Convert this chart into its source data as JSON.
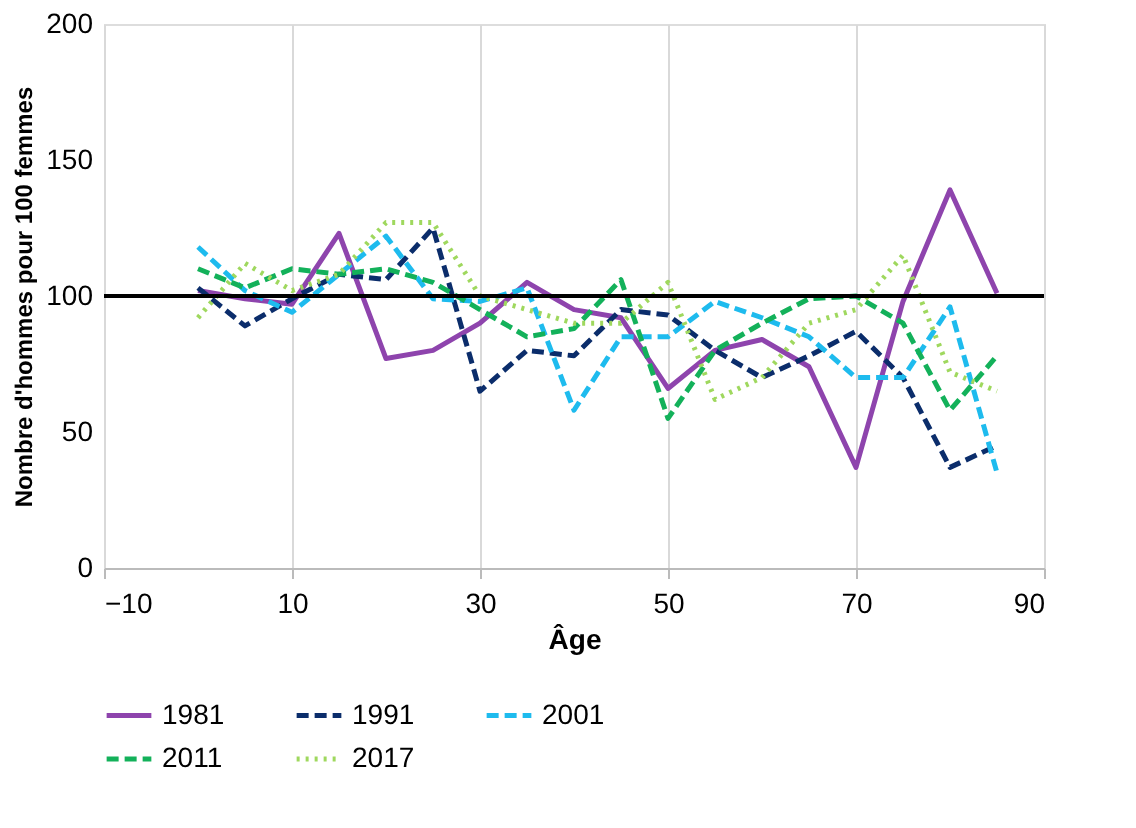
{
  "chart_data": {
    "type": "line",
    "xlabel": "Âge",
    "ylabel": "Nombre d'hommes pour 100 femmes",
    "x": [
      0,
      5,
      10,
      15,
      20,
      25,
      30,
      35,
      40,
      45,
      50,
      55,
      60,
      65,
      70,
      75,
      80,
      85
    ],
    "series": [
      {
        "name": "1981",
        "color": "#8e44ad",
        "line_style": "solid",
        "values": [
          102,
          99,
          97,
          123,
          77,
          80,
          90,
          105,
          95,
          92,
          66,
          80,
          84,
          74,
          37,
          98,
          139,
          101
        ]
      },
      {
        "name": "1991",
        "color": "#0b2d6b",
        "line_style": "dashed",
        "values": [
          103,
          89,
          99,
          108,
          106,
          125,
          65,
          80,
          78,
          95,
          93,
          80,
          70,
          78,
          87,
          70,
          37,
          45
        ]
      },
      {
        "name": "2001",
        "color": "#1ebbee",
        "line_style": "dashed",
        "values": [
          118,
          102,
          94,
          108,
          122,
          99,
          98,
          103,
          58,
          85,
          85,
          98,
          92,
          85,
          70,
          70,
          96,
          35
        ]
      },
      {
        "name": "2011",
        "color": "#13b15a",
        "line_style": "dashed",
        "values": [
          110,
          103,
          110,
          108,
          110,
          105,
          95,
          85,
          88,
          106,
          55,
          80,
          90,
          99,
          100,
          90,
          58,
          78
        ]
      },
      {
        "name": "2017",
        "color": "#9fd85e",
        "line_style": "dotted",
        "values": [
          92,
          112,
          102,
          108,
          127,
          127,
          100,
          95,
          90,
          90,
          105,
          62,
          70,
          90,
          95,
          115,
          72,
          65
        ]
      }
    ],
    "xlim": [
      -10,
      90
    ],
    "xticks": [
      -10,
      10,
      30,
      50,
      70,
      90
    ],
    "ylim": [
      0,
      200
    ],
    "yticks": [
      0,
      50,
      100,
      150,
      200
    ],
    "ref_lines": [
      {
        "axis": "y",
        "value": 100,
        "color": "#000000"
      }
    ],
    "grid": "x",
    "legend": "bottom",
    "marker": "none"
  }
}
